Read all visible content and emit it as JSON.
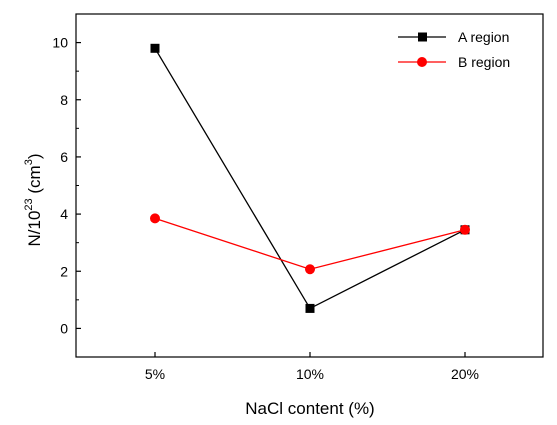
{
  "chart_data": {
    "type": "line",
    "title": "",
    "categories": [
      "5%",
      "10%",
      "20%"
    ],
    "xlabel": "NaCl content (%)",
    "ylabel": {
      "base": "N/10",
      "exp": "23",
      "unit_open": " (cm",
      "unit_exp": "3",
      "unit_close": ")"
    },
    "ylim": [
      -1,
      11
    ],
    "yticks": [
      0,
      2,
      4,
      6,
      8,
      10
    ],
    "grid": false,
    "legend_position": "top-right",
    "series": [
      {
        "name": "A region",
        "values": [
          9.8,
          0.7,
          3.45
        ],
        "color": "#000000",
        "marker": "square"
      },
      {
        "name": "B region",
        "values": [
          3.85,
          2.07,
          3.45
        ],
        "color": "#ff0000",
        "marker": "circle"
      }
    ]
  }
}
